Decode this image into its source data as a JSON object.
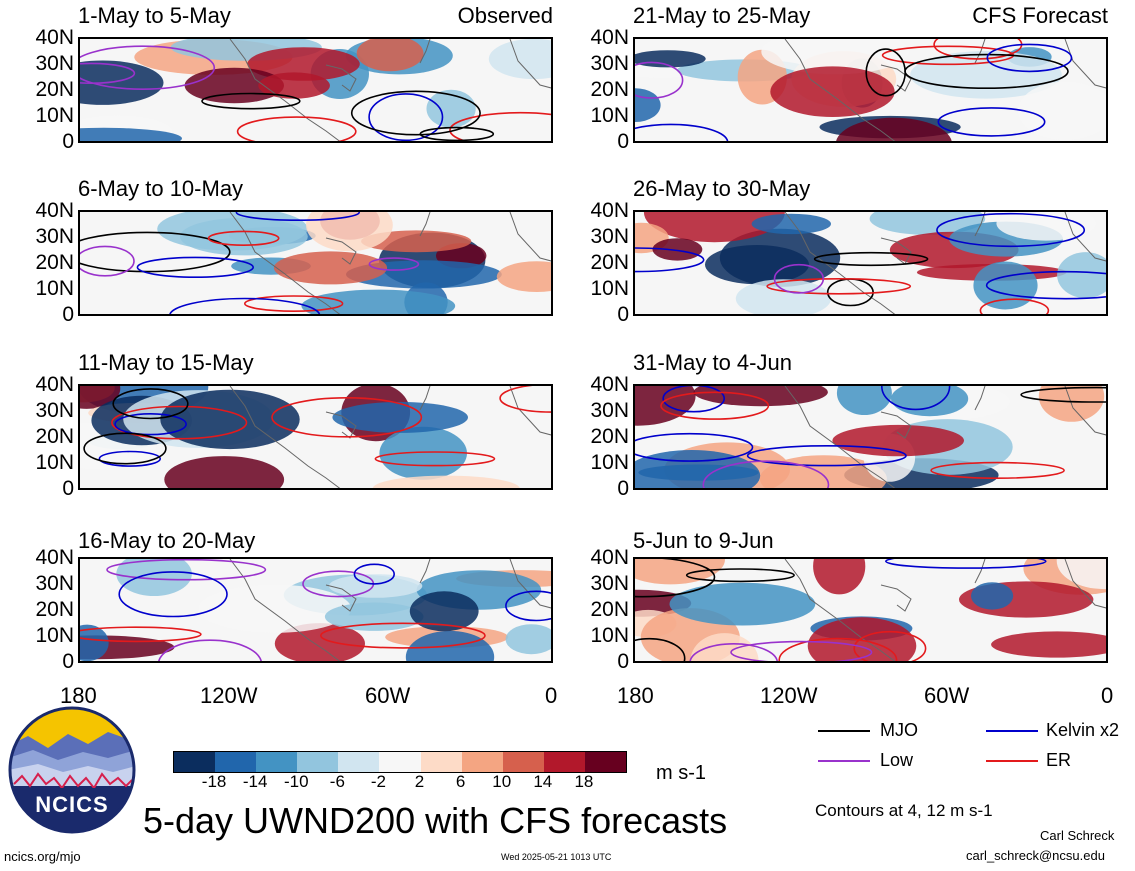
{
  "panels": [
    {
      "title": "1-May to 5-May",
      "label": "Observed"
    },
    {
      "title": "21-May to 25-May",
      "label": "CFS Forecast"
    },
    {
      "title": "6-May to 10-May",
      "label": ""
    },
    {
      "title": "26-May to 30-May",
      "label": ""
    },
    {
      "title": "11-May to 15-May",
      "label": ""
    },
    {
      "title": "31-May to 4-Jun",
      "label": ""
    },
    {
      "title": "16-May to 20-May",
      "label": ""
    },
    {
      "title": "5-Jun to 9-Jun",
      "label": ""
    }
  ],
  "y_ticks": [
    "40N",
    "30N",
    "20N",
    "10N",
    "0"
  ],
  "x_ticks": [
    "180",
    "120W",
    "60W",
    "0"
  ],
  "colorbar": {
    "labels": [
      "-18",
      "-14",
      "-10",
      "-6",
      "-2",
      "2",
      "6",
      "10",
      "14",
      "18"
    ],
    "colors": [
      "#0b2d5e",
      "#2166ac",
      "#4393c3",
      "#92c5de",
      "#d1e5f0",
      "#f7f7f7",
      "#fddbc7",
      "#f4a582",
      "#d6604d",
      "#b2182b",
      "#67001f"
    ],
    "units": "m s-1"
  },
  "legend": {
    "items": [
      {
        "label": "MJO",
        "color": "#000000"
      },
      {
        "label": "Kelvin x2",
        "color": "#0000cc"
      },
      {
        "label": "Low",
        "color": "#9932cc"
      },
      {
        "label": "ER",
        "color": "#e31a1c"
      }
    ],
    "contours_note": "Contours at 4, 12 m s-1"
  },
  "logo_text": "NCICS",
  "main_title": "5-day UWND200 with CFS forecasts",
  "footer": {
    "url": "ncics.org/mjo",
    "timestamp": "Wed 2025-05-21 1013 UTC",
    "author": "Carl Schreck",
    "email": "carl_schreck@ncsu.edu"
  }
}
